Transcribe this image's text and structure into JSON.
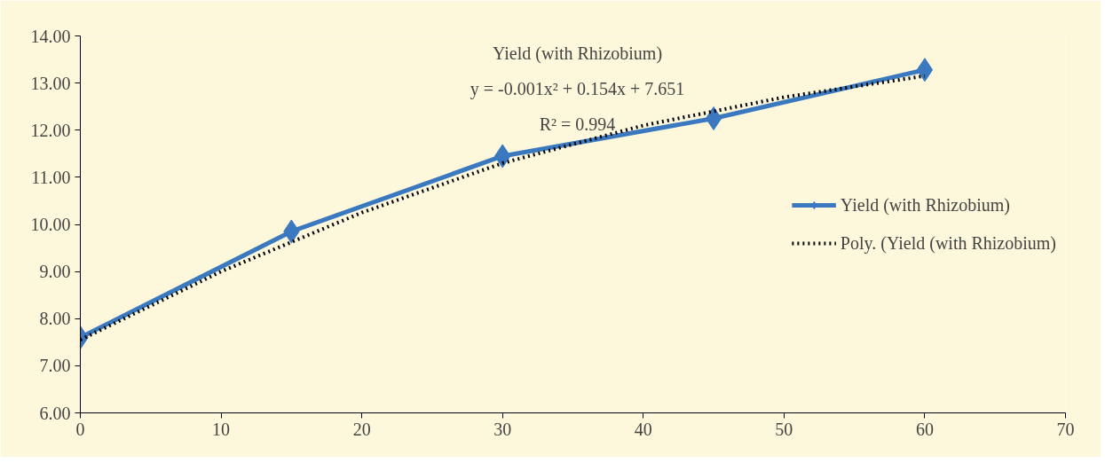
{
  "chart_data": {
    "type": "line",
    "x": [
      0,
      15,
      30,
      45,
      60
    ],
    "series": [
      {
        "name": "Yield (with Rhizobium)",
        "color": "#3a78c0",
        "values": [
          7.6,
          9.85,
          11.45,
          12.25,
          13.28
        ],
        "marker": "diamond",
        "line_style": "solid"
      },
      {
        "name": "Poly. (Yield (with Rhizobium)",
        "color": "#000000",
        "type": "line",
        "x": [
          0,
          10,
          20,
          30,
          40,
          50,
          60
        ],
        "values": [
          7.55,
          9.0,
          10.25,
          11.3,
          12.1,
          12.7,
          13.15
        ],
        "marker": "none",
        "line_style": "dotted"
      }
    ],
    "annotations": [
      "Yield (with Rhizobium)",
      "y = -0.001x² + 0.154x + 7.651",
      "R² = 0.994"
    ],
    "xlim": [
      0,
      70
    ],
    "xticks": [
      0,
      10,
      20,
      30,
      40,
      50,
      60,
      70
    ],
    "ylim": [
      6,
      14
    ],
    "yticks": [
      {
        "value": 6,
        "label": "6.00"
      },
      {
        "value": 7,
        "label": "7.00"
      },
      {
        "value": 8,
        "label": "8.00"
      },
      {
        "value": 9,
        "label": "9.00"
      },
      {
        "value": 10,
        "label": "10.00"
      },
      {
        "value": 11,
        "label": "11.00"
      },
      {
        "value": 12,
        "label": "12.00"
      },
      {
        "value": 13,
        "label": "13.00"
      },
      {
        "value": 14,
        "label": "14.00"
      }
    ],
    "grid": false,
    "legend": "right"
  }
}
